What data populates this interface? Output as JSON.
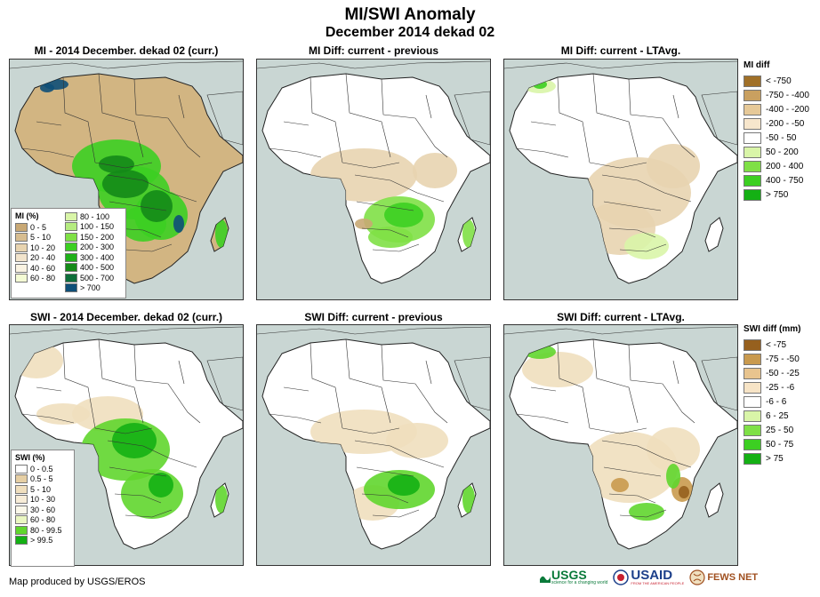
{
  "title": "MI/SWI Anomaly",
  "subtitle": "December 2014 dekad 02",
  "panels": {
    "mi_curr": "MI - 2014 December. dekad 02 (curr.)",
    "mi_prev": "MI Diff: current - previous",
    "mi_lta": "MI Diff: current - LTAvg.",
    "swi_curr": "SWI - 2014 December. dekad 02 (curr.)",
    "swi_prev": "SWI Diff: current - previous",
    "swi_lta": "SWI Diff: current - LTAvg."
  },
  "mi_legend": {
    "title": "MI (%)",
    "col1": [
      {
        "label": "0 - 5",
        "color": "#c8a874"
      },
      {
        "label": "5 - 10",
        "color": "#d7bd90"
      },
      {
        "label": "10 - 20",
        "color": "#e8d4b0"
      },
      {
        "label": "20 - 40",
        "color": "#f2e4cc"
      },
      {
        "label": "40 - 60",
        "color": "#faf3e2"
      },
      {
        "label": "60 - 80",
        "color": "#f4fbd4"
      }
    ],
    "col2": [
      {
        "label": "80 - 100",
        "color": "#d9f5a8"
      },
      {
        "label": "100 - 150",
        "color": "#b5eb80"
      },
      {
        "label": "150 - 200",
        "color": "#7fe046"
      },
      {
        "label": "200 - 300",
        "color": "#3ccf22"
      },
      {
        "label": "300 - 400",
        "color": "#1fb019"
      },
      {
        "label": "400 - 500",
        "color": "#148a18"
      },
      {
        "label": "500 - 700",
        "color": "#0e6e3a"
      },
      {
        "label": "> 700",
        "color": "#0e4f78"
      }
    ]
  },
  "swi_legend": {
    "title": "SWI (%)",
    "items": [
      {
        "label": "0 - 0.5",
        "color": "#ffffff"
      },
      {
        "label": "0.5 - 5",
        "color": "#e6cfa4"
      },
      {
        "label": "5 - 10",
        "color": "#f0dfbe"
      },
      {
        "label": "10 - 30",
        "color": "#f8edd8"
      },
      {
        "label": "30 - 60",
        "color": "#fbf8ea"
      },
      {
        "label": "60 - 80",
        "color": "#eaf7c2"
      },
      {
        "label": "80 - 99.5",
        "color": "#60d62e"
      },
      {
        "label": "> 99.5",
        "color": "#14b014"
      }
    ]
  },
  "mi_diff_legend": {
    "title": "MI diff",
    "items": [
      {
        "label": "< -750",
        "color": "#a07028"
      },
      {
        "label": "-750 - -400",
        "color": "#c9a060"
      },
      {
        "label": "-400 - -200",
        "color": "#e6c998"
      },
      {
        "label": "-200 - -50",
        "color": "#f7e6cc"
      },
      {
        "label": "-50 - 50",
        "color": "#ffffff"
      },
      {
        "label": "50 - 200",
        "color": "#d9f5a8"
      },
      {
        "label": "200 - 400",
        "color": "#7fe046"
      },
      {
        "label": "400 - 750",
        "color": "#3ccf22"
      },
      {
        "label": "> 750",
        "color": "#14b014"
      }
    ]
  },
  "swi_diff_legend": {
    "title": "SWI diff (mm)",
    "items": [
      {
        "label": "< -75",
        "color": "#96601e"
      },
      {
        "label": "-75 - -50",
        "color": "#c99a4e"
      },
      {
        "label": "-50 - -25",
        "color": "#e8c48e"
      },
      {
        "label": "-25 - -6",
        "color": "#f7e4c6"
      },
      {
        "label": "-6 - 6",
        "color": "#ffffff"
      },
      {
        "label": "6 - 25",
        "color": "#d9f5a8"
      },
      {
        "label": "25 - 50",
        "color": "#7fe046"
      },
      {
        "label": "50 - 75",
        "color": "#3ccf22"
      },
      {
        "label": "> 75",
        "color": "#14b014"
      }
    ]
  },
  "footer": "Map produced by USGS/EROS",
  "logos": {
    "usgs": "USGS",
    "usgs_tagline": "science for a changing world",
    "usaid": "USAID",
    "usaid_tagline": "FROM THE AMERICAN PEOPLE",
    "fews": "FEWS NET"
  },
  "colors": {
    "ocean": "#c9d6d3",
    "dry": "#d2b582",
    "wet": "#3ccf22",
    "deep": "#148a18",
    "border": "#222222"
  }
}
